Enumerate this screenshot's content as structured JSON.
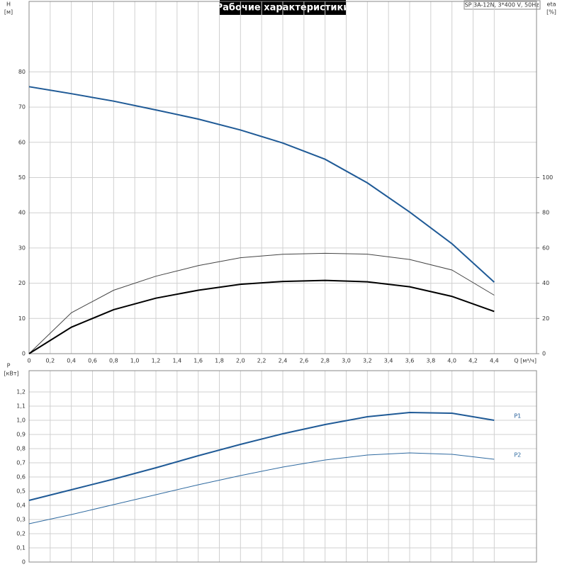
{
  "chart_data": [
    {
      "type": "line",
      "title": "Рабочие характеристики",
      "subtitle": "SP 3A-12N, 3*400 V, 50Hz",
      "ylabel": "H",
      "yunit": "[м]",
      "y2label": "eta",
      "y2unit": "[%]",
      "xlabel": "Q [м³/ч]",
      "x": [
        0,
        0.4,
        0.8,
        1.2,
        1.6,
        2.0,
        2.4,
        2.8,
        3.2,
        3.6,
        4.0,
        4.4
      ],
      "xlim": [
        0,
        4.8
      ],
      "xticks": [
        0,
        {
          "value": 0.2,
          "label": "0,2"
        },
        {
          "value": 0.4,
          "label": "0,4"
        },
        {
          "value": 0.6,
          "label": "0,6"
        },
        {
          "value": 0.8,
          "label": "0,8"
        },
        {
          "value": 1.0,
          "label": "1,0"
        },
        {
          "value": 1.2,
          "label": "1,2"
        },
        {
          "value": 1.4,
          "label": "1,4"
        },
        {
          "value": 1.6,
          "label": "1,6"
        },
        {
          "value": 1.8,
          "label": "1,8"
        },
        {
          "value": 2.0,
          "label": "2,0"
        },
        {
          "value": 2.2,
          "label": "2,2"
        },
        {
          "value": 2.4,
          "label": "2,4"
        },
        {
          "value": 2.6,
          "label": "2,6"
        },
        {
          "value": 2.8,
          "label": "2,8"
        },
        {
          "value": 3.0,
          "label": "3,0"
        },
        {
          "value": 3.2,
          "label": "3,2"
        },
        {
          "value": 3.4,
          "label": "3,4"
        },
        {
          "value": 3.6,
          "label": "3,6"
        },
        {
          "value": 3.8,
          "label": "3,8"
        },
        {
          "value": 4.0,
          "label": "4,0"
        },
        {
          "value": 4.2,
          "label": "4,2"
        },
        {
          "value": 4.4,
          "label": "4,4"
        }
      ],
      "ylim": [
        0,
        100
      ],
      "yticks": [
        0,
        10,
        20,
        30,
        40,
        50,
        60,
        70,
        80
      ],
      "y2lim": [
        0,
        200
      ],
      "y2ticks": [
        0,
        20,
        40,
        60,
        80,
        100
      ],
      "grid": true,
      "series": [
        {
          "color": "#1f5a96",
          "linewidth": 2,
          "values": [
            75.8,
            73.8,
            71.7,
            69.2,
            66.6,
            63.5,
            59.8,
            55.2,
            48.5,
            40.2,
            31.2,
            20.3
          ]
        },
        {
          "color": "#444444",
          "linewidth": 1,
          "axis": "y2",
          "values": [
            0,
            23.2,
            36,
            44,
            50,
            54.5,
            56.4,
            57,
            56.5,
            53.5,
            47.5,
            33.2
          ]
        },
        {
          "color": "#000000",
          "linewidth": 2,
          "axis": "y2",
          "values": [
            0,
            15,
            25,
            31.5,
            36,
            39.4,
            41,
            41.6,
            40.8,
            38,
            32.5,
            24
          ]
        }
      ]
    },
    {
      "type": "line",
      "ylabel": "P",
      "yunit": "[кВт]",
      "x": [
        0,
        0.4,
        0.8,
        1.2,
        1.6,
        2.0,
        2.4,
        2.8,
        3.2,
        3.6,
        4.0,
        4.4
      ],
      "xlim": [
        0,
        4.8
      ],
      "ylim": [
        0,
        1.35
      ],
      "yticks": [
        0,
        {
          "value": 0.1,
          "label": "0,1"
        },
        {
          "value": 0.2,
          "label": "0,2"
        },
        {
          "value": 0.3,
          "label": "0,3"
        },
        {
          "value": 0.4,
          "label": "0,4"
        },
        {
          "value": 0.5,
          "label": "0,5"
        },
        {
          "value": 0.6,
          "label": "0,6"
        },
        {
          "value": 0.7,
          "label": "0,7"
        },
        {
          "value": 0.8,
          "label": "0,8"
        },
        {
          "value": 0.9,
          "label": "0,9"
        },
        {
          "value": 1.0,
          "label": "1,0"
        },
        {
          "value": 1.1,
          "label": "1,1"
        },
        {
          "value": 1.2,
          "label": "1,2"
        }
      ],
      "grid": true,
      "series": [
        {
          "name": "P1",
          "color": "#1f5a96",
          "linewidth": 2,
          "values": [
            0.435,
            0.51,
            0.585,
            0.665,
            0.75,
            0.83,
            0.905,
            0.97,
            1.025,
            1.055,
            1.05,
            1.0
          ]
        },
        {
          "name": "P2",
          "color": "#2f6aa0",
          "linewidth": 1,
          "values": [
            0.27,
            0.335,
            0.405,
            0.475,
            0.545,
            0.61,
            0.67,
            0.72,
            0.755,
            0.77,
            0.76,
            0.725
          ]
        }
      ]
    }
  ]
}
